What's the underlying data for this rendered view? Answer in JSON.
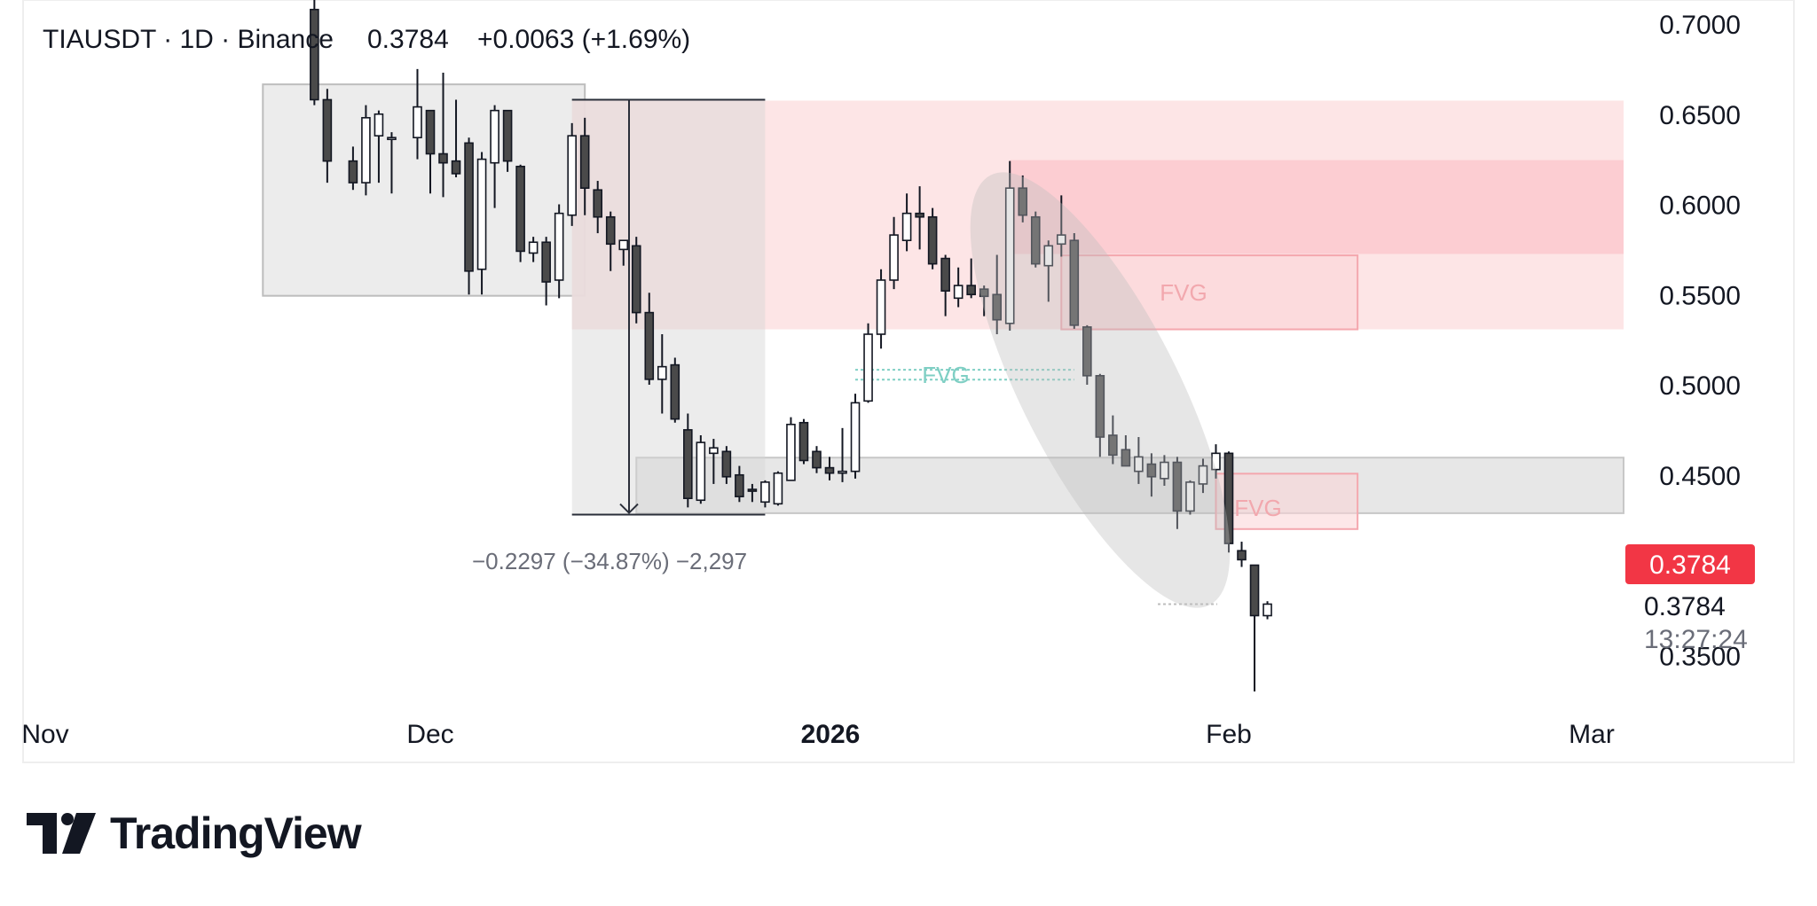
{
  "header": {
    "symbol_line": "TIAUSDT · 1D · Binance",
    "last": "0.3784",
    "change": "+0.0063 (+1.69%)"
  },
  "measure": {
    "label": "−0.2297 (−34.87%) −2,297"
  },
  "price_tag": {
    "value": "0.3784",
    "color": "#f23645"
  },
  "last_label": "0.3784",
  "countdown": "13:27:24",
  "logo": {
    "text": "TradingView"
  },
  "annotations": {
    "fvg_label": "FVG"
  },
  "colors": {
    "down_body": "#4a4a4a",
    "up_body": "#ffffff",
    "wick": "#131722",
    "supply_zone": "#fde2e3",
    "supply_zone_strong": "#fbc7cd",
    "gray_zone": "#e9e9e9",
    "fvg_teal": "#7fcfc4"
  },
  "chart_data": {
    "type": "candlestick",
    "symbol": "TIAUSDT",
    "interval": "1D",
    "exchange": "Binance",
    "y_axis": {
      "ticks": [
        "0.7000",
        "0.6500",
        "0.6000",
        "0.5500",
        "0.5000",
        "0.4500",
        "0.3500"
      ],
      "range": [
        0.32,
        0.713
      ]
    },
    "x_axis": {
      "ticks": [
        "Nov",
        "Dec",
        "2026",
        "Feb",
        "Mar"
      ]
    },
    "candles": [
      {
        "d": "2025-11-22",
        "o": 0.708,
        "h": 0.74,
        "l": 0.655,
        "c": 0.658
      },
      {
        "d": "2025-11-23",
        "o": 0.658,
        "h": 0.664,
        "l": 0.612,
        "c": 0.624
      },
      {
        "d": "2025-11-25",
        "o": 0.624,
        "h": 0.632,
        "l": 0.608,
        "c": 0.612
      },
      {
        "d": "2025-11-26",
        "o": 0.612,
        "h": 0.655,
        "l": 0.605,
        "c": 0.648
      },
      {
        "d": "2025-11-27",
        "o": 0.638,
        "h": 0.652,
        "l": 0.612,
        "c": 0.65
      },
      {
        "d": "2025-11-28",
        "o": 0.636,
        "h": 0.64,
        "l": 0.606,
        "c": 0.637
      },
      {
        "d": "2025-11-30",
        "o": 0.637,
        "h": 0.675,
        "l": 0.625,
        "c": 0.654
      },
      {
        "d": "2025-12-01",
        "o": 0.652,
        "h": 0.652,
        "l": 0.606,
        "c": 0.628
      },
      {
        "d": "2025-12-02",
        "o": 0.628,
        "h": 0.673,
        "l": 0.604,
        "c": 0.623
      },
      {
        "d": "2025-12-03",
        "o": 0.624,
        "h": 0.658,
        "l": 0.615,
        "c": 0.617
      },
      {
        "d": "2025-12-04",
        "o": 0.634,
        "h": 0.637,
        "l": 0.55,
        "c": 0.563
      },
      {
        "d": "2025-12-05",
        "o": 0.564,
        "h": 0.629,
        "l": 0.55,
        "c": 0.625
      },
      {
        "d": "2025-12-06",
        "o": 0.623,
        "h": 0.655,
        "l": 0.598,
        "c": 0.652
      },
      {
        "d": "2025-12-07",
        "o": 0.652,
        "h": 0.652,
        "l": 0.618,
        "c": 0.624
      },
      {
        "d": "2025-12-08",
        "o": 0.621,
        "h": 0.622,
        "l": 0.568,
        "c": 0.574
      },
      {
        "d": "2025-12-09",
        "o": 0.573,
        "h": 0.582,
        "l": 0.568,
        "c": 0.579
      },
      {
        "d": "2025-12-10",
        "o": 0.579,
        "h": 0.582,
        "l": 0.544,
        "c": 0.557
      },
      {
        "d": "2025-12-11",
        "o": 0.558,
        "h": 0.6,
        "l": 0.548,
        "c": 0.595
      },
      {
        "d": "2025-12-12",
        "o": 0.594,
        "h": 0.645,
        "l": 0.588,
        "c": 0.638
      },
      {
        "d": "2025-12-13",
        "o": 0.638,
        "h": 0.648,
        "l": 0.594,
        "c": 0.609
      },
      {
        "d": "2025-12-14",
        "o": 0.608,
        "h": 0.613,
        "l": 0.584,
        "c": 0.593
      },
      {
        "d": "2025-12-15",
        "o": 0.593,
        "h": 0.596,
        "l": 0.563,
        "c": 0.578
      },
      {
        "d": "2025-12-16",
        "o": 0.575,
        "h": 0.58,
        "l": 0.566,
        "c": 0.58
      },
      {
        "d": "2025-12-17",
        "o": 0.577,
        "h": 0.582,
        "l": 0.534,
        "c": 0.54
      },
      {
        "d": "2025-12-18",
        "o": 0.54,
        "h": 0.551,
        "l": 0.5,
        "c": 0.503
      },
      {
        "d": "2025-12-19",
        "o": 0.503,
        "h": 0.528,
        "l": 0.484,
        "c": 0.51
      },
      {
        "d": "2025-12-20",
        "o": 0.511,
        "h": 0.515,
        "l": 0.479,
        "c": 0.481
      },
      {
        "d": "2025-12-21",
        "o": 0.475,
        "h": 0.484,
        "l": 0.432,
        "c": 0.437
      },
      {
        "d": "2025-12-22",
        "o": 0.436,
        "h": 0.472,
        "l": 0.434,
        "c": 0.468
      },
      {
        "d": "2025-12-23",
        "o": 0.462,
        "h": 0.47,
        "l": 0.445,
        "c": 0.465
      },
      {
        "d": "2025-12-24",
        "o": 0.463,
        "h": 0.466,
        "l": 0.445,
        "c": 0.449
      },
      {
        "d": "2025-12-25",
        "o": 0.45,
        "h": 0.455,
        "l": 0.435,
        "c": 0.438
      },
      {
        "d": "2025-12-26",
        "o": 0.442,
        "h": 0.445,
        "l": 0.435,
        "c": 0.441
      },
      {
        "d": "2025-12-27",
        "o": 0.435,
        "h": 0.447,
        "l": 0.432,
        "c": 0.446
      },
      {
        "d": "2025-12-28",
        "o": 0.434,
        "h": 0.452,
        "l": 0.433,
        "c": 0.451
      },
      {
        "d": "2025-12-29",
        "o": 0.447,
        "h": 0.482,
        "l": 0.447,
        "c": 0.478
      },
      {
        "d": "2025-12-30",
        "o": 0.479,
        "h": 0.481,
        "l": 0.456,
        "c": 0.458
      },
      {
        "d": "2025-12-31",
        "o": 0.463,
        "h": 0.466,
        "l": 0.451,
        "c": 0.454
      },
      {
        "d": "2026-01-01",
        "o": 0.454,
        "h": 0.46,
        "l": 0.447,
        "c": 0.451
      },
      {
        "d": "2026-01-02",
        "o": 0.451,
        "h": 0.476,
        "l": 0.446,
        "c": 0.452
      },
      {
        "d": "2026-01-03",
        "o": 0.452,
        "h": 0.495,
        "l": 0.448,
        "c": 0.49
      },
      {
        "d": "2026-01-04",
        "o": 0.491,
        "h": 0.534,
        "l": 0.49,
        "c": 0.528
      },
      {
        "d": "2026-01-05",
        "o": 0.528,
        "h": 0.564,
        "l": 0.52,
        "c": 0.558
      },
      {
        "d": "2026-01-06",
        "o": 0.558,
        "h": 0.593,
        "l": 0.553,
        "c": 0.583
      },
      {
        "d": "2026-01-07",
        "o": 0.58,
        "h": 0.606,
        "l": 0.574,
        "c": 0.595
      },
      {
        "d": "2026-01-08",
        "o": 0.595,
        "h": 0.61,
        "l": 0.575,
        "c": 0.593
      },
      {
        "d": "2026-01-09",
        "o": 0.593,
        "h": 0.598,
        "l": 0.564,
        "c": 0.567
      },
      {
        "d": "2026-01-10",
        "o": 0.57,
        "h": 0.572,
        "l": 0.538,
        "c": 0.552
      },
      {
        "d": "2026-01-11",
        "o": 0.548,
        "h": 0.565,
        "l": 0.543,
        "c": 0.555
      },
      {
        "d": "2026-01-12",
        "o": 0.555,
        "h": 0.57,
        "l": 0.548,
        "c": 0.55
      },
      {
        "d": "2026-01-13",
        "o": 0.553,
        "h": 0.555,
        "l": 0.538,
        "c": 0.549
      },
      {
        "d": "2026-01-14",
        "o": 0.55,
        "h": 0.572,
        "l": 0.528,
        "c": 0.536
      },
      {
        "d": "2026-01-15",
        "o": 0.534,
        "h": 0.624,
        "l": 0.53,
        "c": 0.609
      },
      {
        "d": "2026-01-16",
        "o": 0.609,
        "h": 0.616,
        "l": 0.59,
        "c": 0.594
      },
      {
        "d": "2026-01-17",
        "o": 0.593,
        "h": 0.596,
        "l": 0.565,
        "c": 0.567
      },
      {
        "d": "2026-01-18",
        "o": 0.566,
        "h": 0.58,
        "l": 0.546,
        "c": 0.577
      },
      {
        "d": "2026-01-19",
        "o": 0.578,
        "h": 0.605,
        "l": 0.571,
        "c": 0.583
      },
      {
        "d": "2026-01-20",
        "o": 0.58,
        "h": 0.584,
        "l": 0.531,
        "c": 0.533
      },
      {
        "d": "2026-01-21",
        "o": 0.532,
        "h": 0.533,
        "l": 0.5,
        "c": 0.505
      },
      {
        "d": "2026-01-22",
        "o": 0.505,
        "h": 0.506,
        "l": 0.46,
        "c": 0.471
      },
      {
        "d": "2026-01-23",
        "o": 0.472,
        "h": 0.483,
        "l": 0.456,
        "c": 0.461
      },
      {
        "d": "2026-01-24",
        "o": 0.464,
        "h": 0.472,
        "l": 0.455,
        "c": 0.455
      },
      {
        "d": "2026-01-25",
        "o": 0.452,
        "h": 0.471,
        "l": 0.445,
        "c": 0.46
      },
      {
        "d": "2026-01-26",
        "o": 0.456,
        "h": 0.462,
        "l": 0.438,
        "c": 0.449
      },
      {
        "d": "2026-01-27",
        "o": 0.448,
        "h": 0.461,
        "l": 0.444,
        "c": 0.457
      },
      {
        "d": "2026-01-28",
        "o": 0.457,
        "h": 0.46,
        "l": 0.42,
        "c": 0.43
      },
      {
        "d": "2026-01-29",
        "o": 0.43,
        "h": 0.447,
        "l": 0.428,
        "c": 0.446
      },
      {
        "d": "2026-01-30",
        "o": 0.445,
        "h": 0.459,
        "l": 0.44,
        "c": 0.455
      },
      {
        "d": "2026-01-31",
        "o": 0.453,
        "h": 0.467,
        "l": 0.448,
        "c": 0.462
      },
      {
        "d": "2026-02-01",
        "o": 0.462,
        "h": 0.463,
        "l": 0.407,
        "c": 0.412
      },
      {
        "d": "2026-02-02",
        "o": 0.408,
        "h": 0.413,
        "l": 0.399,
        "c": 0.403
      },
      {
        "d": "2026-02-03",
        "o": 0.4,
        "h": 0.4,
        "l": 0.33,
        "c": 0.372
      },
      {
        "d": "2026-02-04",
        "o": 0.372,
        "h": 0.38,
        "l": 0.37,
        "c": 0.3784
      }
    ],
    "zones": [
      {
        "kind": "consolidation",
        "from": "2025-11-18",
        "to": "2025-12-13",
        "top": 0.6665,
        "bottom": 0.5493
      },
      {
        "kind": "supply",
        "from": "2025-12-12",
        "to": "2026-03-01",
        "top": 0.6575,
        "bottom": 0.5307
      },
      {
        "kind": "supply-strong",
        "from": "2026-01-15",
        "to": "2026-03-01",
        "top": 0.6245,
        "bottom": 0.5725
      },
      {
        "kind": "demand",
        "from": "2025-12-17",
        "to": "2026-03-01",
        "top": 0.4596,
        "bottom": 0.4288
      },
      {
        "kind": "fvg-red",
        "from": "2026-01-19",
        "to": "2026-02-11",
        "top": 0.5717,
        "bottom": 0.5307,
        "label": "FVG"
      },
      {
        "kind": "fvg-red",
        "from": "2026-01-31",
        "to": "2026-02-11",
        "top": 0.4507,
        "bottom": 0.42,
        "label": "FVG"
      },
      {
        "kind": "fvg-teal",
        "from": "2026-01-03",
        "to": "2026-01-20",
        "top": 0.5083,
        "bottom": 0.5028,
        "label": "FVG"
      }
    ],
    "measure": {
      "from": "2025-12-12",
      "to": "2025-12-27",
      "start_price": 0.658,
      "end_price": 0.428,
      "change": -0.2297,
      "change_pct": -34.87
    }
  }
}
